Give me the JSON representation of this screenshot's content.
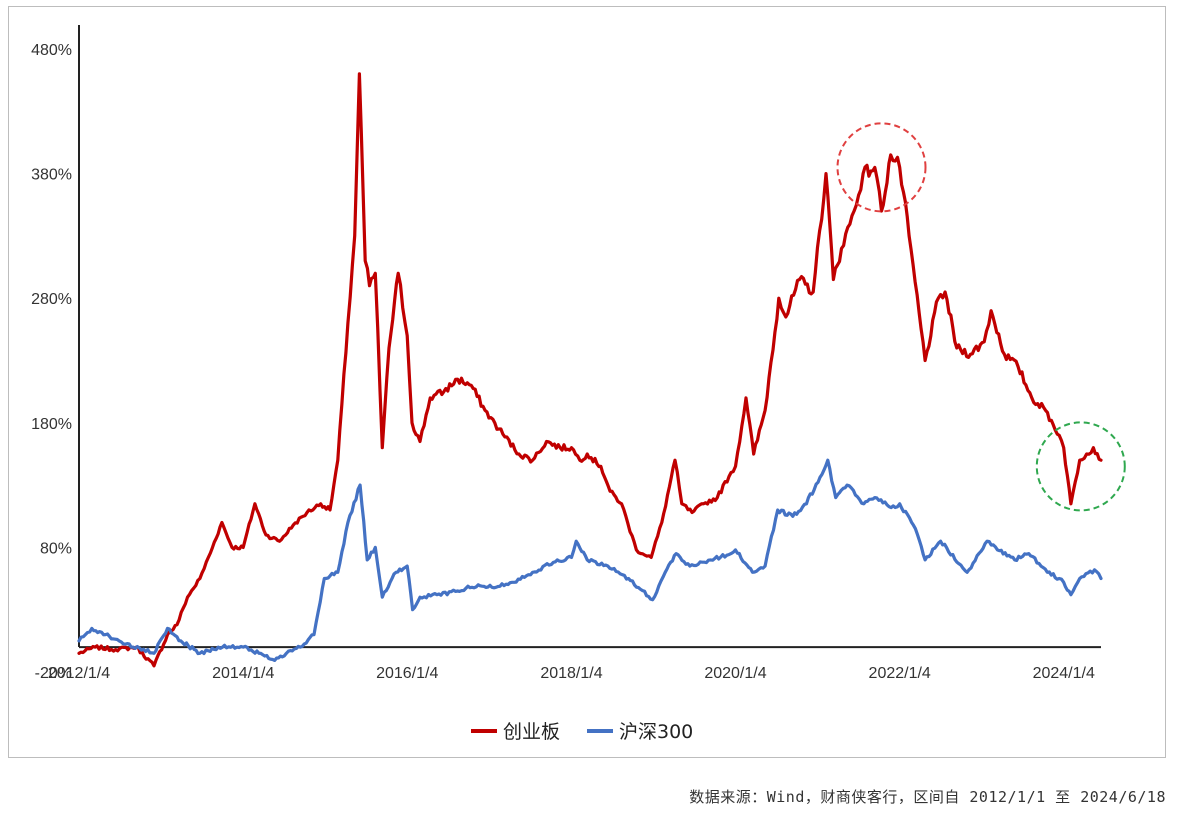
{
  "chart_data": {
    "type": "line",
    "y_tick_labels": [
      "480%",
      "380%",
      "280%",
      "180%",
      "80%",
      "-20%"
    ],
    "x_tick_labels": [
      "2012/1/4",
      "2014/1/4",
      "2016/1/4",
      "2018/1/4",
      "2020/1/4",
      "2022/1/4",
      "2024/1/4"
    ],
    "ylim": [
      -20,
      480
    ],
    "y_unit": "%",
    "xlim": [
      "2012/1/4",
      "2024/6/18"
    ],
    "grid": false,
    "legend_position": "bottom-center",
    "series": [
      {
        "name": "创业板",
        "color": "#c00000",
        "points": [
          [
            "2012/1/4",
            -5
          ],
          [
            "2012/3/15",
            0
          ],
          [
            "2012/6/15",
            -2
          ],
          [
            "2012/9/15",
            0
          ],
          [
            "2012/12/3",
            -15
          ],
          [
            "2013/2/1",
            10
          ],
          [
            "2013/3/15",
            18
          ],
          [
            "2013/5/1",
            40
          ],
          [
            "2013/6/25",
            55
          ],
          [
            "2013/8/20",
            80
          ],
          [
            "2013/10/1",
            100
          ],
          [
            "2013/11/15",
            80
          ],
          [
            "2014/1/4",
            80
          ],
          [
            "2014/2/25",
            115
          ],
          [
            "2014/4/15",
            90
          ],
          [
            "2014/6/15",
            85
          ],
          [
            "2014/8/15",
            98
          ],
          [
            "2014/10/15",
            108
          ],
          [
            "2014/12/15",
            115
          ],
          [
            "2015/1/25",
            110
          ],
          [
            "2015/3/1",
            150
          ],
          [
            "2015/4/15",
            260
          ],
          [
            "2015/5/15",
            330
          ],
          [
            "2015/6/5",
            460
          ],
          [
            "2015/7/1",
            310
          ],
          [
            "2015/7/20",
            290
          ],
          [
            "2015/8/15",
            300
          ],
          [
            "2015/9/15",
            160
          ],
          [
            "2015/10/15",
            240
          ],
          [
            "2015/11/25",
            300
          ],
          [
            "2016/1/4",
            250
          ],
          [
            "2016/1/25",
            180
          ],
          [
            "2016/3/1",
            165
          ],
          [
            "2016/4/15",
            200
          ],
          [
            "2016/6/15",
            205
          ],
          [
            "2016/8/15",
            215
          ],
          [
            "2016/10/15",
            210
          ],
          [
            "2016/12/15",
            190
          ],
          [
            "2017/2/15",
            175
          ],
          [
            "2017/5/15",
            155
          ],
          [
            "2017/7/15",
            150
          ],
          [
            "2017/9/15",
            165
          ],
          [
            "2017/11/15",
            160
          ],
          [
            "2018/1/4",
            160
          ],
          [
            "2018/2/10",
            150
          ],
          [
            "2018/3/15",
            155
          ],
          [
            "2018/5/15",
            145
          ],
          [
            "2018/6/25",
            125
          ],
          [
            "2018/8/15",
            115
          ],
          [
            "2018/10/20",
            78
          ],
          [
            "2018/12/25",
            72
          ],
          [
            "2019/2/10",
            100
          ],
          [
            "2019/4/10",
            150
          ],
          [
            "2019/5/10",
            115
          ],
          [
            "2019/6/25",
            108
          ],
          [
            "2019/8/15",
            115
          ],
          [
            "2019/10/15",
            120
          ],
          [
            "2019/12/15",
            140
          ],
          [
            "2020/1/4",
            145
          ],
          [
            "2020/2/20",
            200
          ],
          [
            "2020/3/25",
            155
          ],
          [
            "2020/5/15",
            190
          ],
          [
            "2020/7/15",
            280
          ],
          [
            "2020/8/15",
            265
          ],
          [
            "2020/10/15",
            295
          ],
          [
            "2020/12/15",
            285
          ],
          [
            "2021/2/10",
            380
          ],
          [
            "2021/3/15",
            295
          ],
          [
            "2021/4/20",
            320
          ],
          [
            "2021/6/15",
            350
          ],
          [
            "2021/7/25",
            380
          ],
          [
            "2021/9/15",
            385
          ],
          [
            "2021/10/15",
            350
          ],
          [
            "2021/11/25",
            395
          ],
          [
            "2022/1/4",
            385
          ],
          [
            "2022/2/15",
            330
          ],
          [
            "2022/4/27",
            230
          ],
          [
            "2022/6/25",
            280
          ],
          [
            "2022/7/25",
            285
          ],
          [
            "2022/9/15",
            240
          ],
          [
            "2022/11/15",
            235
          ],
          [
            "2023/1/15",
            245
          ],
          [
            "2023/2/15",
            270
          ],
          [
            "2023/4/15",
            235
          ],
          [
            "2023/6/15",
            225
          ],
          [
            "2023/8/15",
            200
          ],
          [
            "2023/10/15",
            190
          ],
          [
            "2023/12/15",
            170
          ],
          [
            "2024/1/4",
            160
          ],
          [
            "2024/2/5",
            115
          ],
          [
            "2024/3/15",
            150
          ],
          [
            "2024/4/15",
            155
          ],
          [
            "2024/5/15",
            160
          ],
          [
            "2024/6/18",
            150
          ]
        ]
      },
      {
        "name": "沪深300",
        "color": "#4472c4",
        "points": [
          [
            "2012/1/4",
            5
          ],
          [
            "2012/3/1",
            15
          ],
          [
            "2012/5/1",
            10
          ],
          [
            "2012/7/1",
            5
          ],
          [
            "2012/9/1",
            0
          ],
          [
            "2012/12/3",
            -5
          ],
          [
            "2013/2/1",
            15
          ],
          [
            "2013/4/1",
            5
          ],
          [
            "2013/6/25",
            -5
          ],
          [
            "2013/9/15",
            0
          ],
          [
            "2014/1/4",
            0
          ],
          [
            "2014/3/15",
            -5
          ],
          [
            "2014/5/15",
            -10
          ],
          [
            "2014/7/15",
            -5
          ],
          [
            "2014/9/15",
            0
          ],
          [
            "2014/11/15",
            10
          ],
          [
            "2014/12/31",
            55
          ],
          [
            "2015/3/1",
            60
          ],
          [
            "2015/4/15",
            100
          ],
          [
            "2015/6/8",
            130
          ],
          [
            "2015/7/10",
            70
          ],
          [
            "2015/8/15",
            80
          ],
          [
            "2015/9/15",
            40
          ],
          [
            "2015/11/15",
            60
          ],
          [
            "2016/1/4",
            65
          ],
          [
            "2016/1/28",
            30
          ],
          [
            "2016/3/1",
            40
          ],
          [
            "2016/5/15",
            42
          ],
          [
            "2016/8/15",
            45
          ],
          [
            "2016/11/15",
            50
          ],
          [
            "2017/1/15",
            48
          ],
          [
            "2017/4/15",
            52
          ],
          [
            "2017/7/15",
            60
          ],
          [
            "2017/10/15",
            68
          ],
          [
            "2018/1/4",
            72
          ],
          [
            "2018/1/25",
            85
          ],
          [
            "2018/3/15",
            70
          ],
          [
            "2018/6/15",
            65
          ],
          [
            "2018/9/15",
            55
          ],
          [
            "2018/12/31",
            38
          ],
          [
            "2019/2/25",
            60
          ],
          [
            "2019/4/15",
            75
          ],
          [
            "2019/6/15",
            65
          ],
          [
            "2019/9/15",
            70
          ],
          [
            "2019/12/15",
            75
          ],
          [
            "2020/1/4",
            78
          ],
          [
            "2020/3/20",
            60
          ],
          [
            "2020/5/15",
            65
          ],
          [
            "2020/7/10",
            110
          ],
          [
            "2020/9/15",
            105
          ],
          [
            "2020/11/15",
            115
          ],
          [
            "2021/2/18",
            150
          ],
          [
            "2021/3/25",
            120
          ],
          [
            "2021/5/15",
            130
          ],
          [
            "2021/7/28",
            115
          ],
          [
            "2021/9/15",
            120
          ],
          [
            "2021/12/15",
            112
          ],
          [
            "2022/1/4",
            115
          ],
          [
            "2022/3/15",
            95
          ],
          [
            "2022/4/27",
            70
          ],
          [
            "2022/7/5",
            85
          ],
          [
            "2022/10/31",
            60
          ],
          [
            "2023/1/28",
            85
          ],
          [
            "2023/3/15",
            78
          ],
          [
            "2023/5/31",
            70
          ],
          [
            "2023/8/1",
            75
          ],
          [
            "2023/10/23",
            60
          ],
          [
            "2023/12/15",
            55
          ],
          [
            "2024/1/4",
            52
          ],
          [
            "2024/2/5",
            42
          ],
          [
            "2024/3/15",
            55
          ],
          [
            "2024/5/20",
            62
          ],
          [
            "2024/6/18",
            55
          ]
        ]
      }
    ],
    "annotations": [
      {
        "shape": "dashed-circle",
        "color": "#e04040",
        "around_date": "2021/10/15",
        "around_value": 385
      },
      {
        "shape": "dashed-circle",
        "color": "#2fa84f",
        "around_date": "2024/3/20",
        "around_value": 145
      }
    ]
  },
  "source_note": "数据来源：Wind，财商侠客行，区间自 2012/1/1 至 2024/6/18"
}
